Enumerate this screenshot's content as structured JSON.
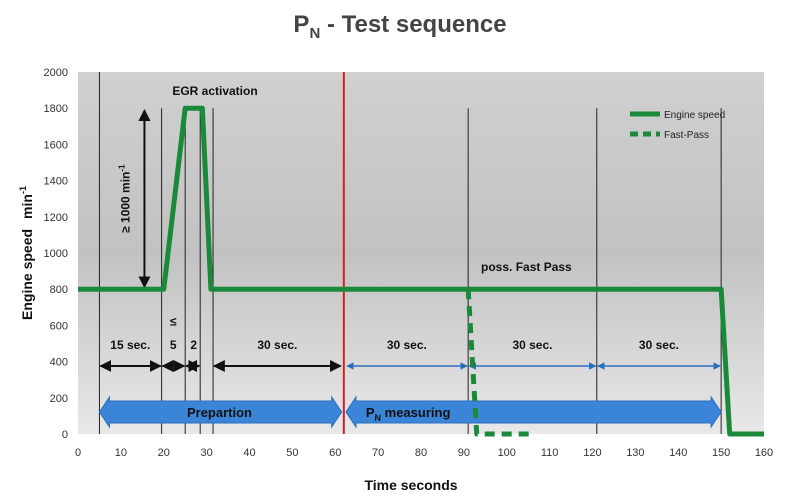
{
  "chart_data": {
    "type": "line",
    "title_main": "P",
    "title_sub": "N",
    "title_rest": " - Test sequence",
    "xlabel": "Time  seconds",
    "ylabel": "Engine speed",
    "ylabel_unit": "min",
    "ylabel_unit_sup": "-1",
    "xlim": [
      0,
      160
    ],
    "ylim": [
      0,
      2000
    ],
    "x_ticks": [
      0,
      10,
      20,
      30,
      40,
      50,
      60,
      70,
      80,
      90,
      100,
      110,
      120,
      130,
      140,
      150,
      160
    ],
    "y_ticks": [
      0,
      200,
      400,
      600,
      800,
      1000,
      1200,
      1400,
      1600,
      1800,
      2000
    ],
    "legend": {
      "position": "top-right",
      "entries": [
        "Engine speed",
        "Fast-Pass"
      ]
    },
    "series": [
      {
        "name": "Engine speed",
        "color": "#1a8a3a",
        "style": "solid",
        "points": [
          [
            0,
            800
          ],
          [
            20,
            800
          ],
          [
            25,
            1800
          ],
          [
            29,
            1800
          ],
          [
            31,
            800
          ],
          [
            150,
            800
          ],
          [
            152,
            0
          ],
          [
            160,
            0
          ]
        ]
      },
      {
        "name": "Fast-Pass",
        "color": "#1a8a3a",
        "style": "dashed",
        "points": [
          [
            91,
            800
          ],
          [
            93,
            0
          ],
          [
            106,
            0
          ]
        ]
      }
    ],
    "vlines_black": [
      5,
      19.5,
      25,
      28.5,
      31.5,
      91,
      121,
      150
    ],
    "vline_red": 62,
    "annotations": {
      "egr": "EGR activation",
      "delta": "≥ 1000 min",
      "delta_sup": "-1",
      "fast_pass": "poss. Fast Pass",
      "seg_15": "15 sec.",
      "seg_le": "≤",
      "seg_5": "5",
      "seg_2": "2",
      "seg_30a": "30 sec.",
      "seg_30b": "30 sec.",
      "seg_30c": "30 sec.",
      "seg_30d": "30 sec.",
      "band_prep": "Prepartion",
      "band_meas_p": "P",
      "band_meas_sub": "N",
      "band_meas_rest": " measuring"
    }
  }
}
